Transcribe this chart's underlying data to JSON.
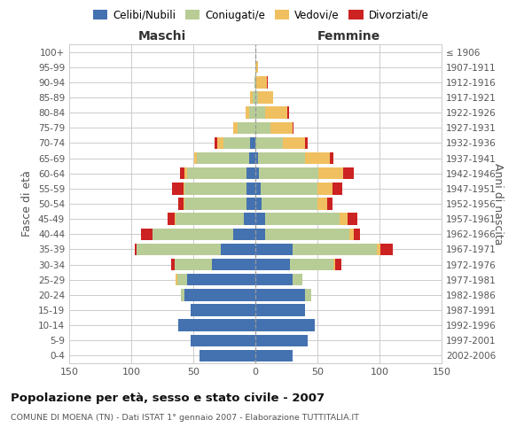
{
  "age_groups": [
    "0-4",
    "5-9",
    "10-14",
    "15-19",
    "20-24",
    "25-29",
    "30-34",
    "35-39",
    "40-44",
    "45-49",
    "50-54",
    "55-59",
    "60-64",
    "65-69",
    "70-74",
    "75-79",
    "80-84",
    "85-89",
    "90-94",
    "95-99",
    "100+"
  ],
  "birth_years": [
    "2002-2006",
    "1997-2001",
    "1992-1996",
    "1987-1991",
    "1982-1986",
    "1977-1981",
    "1972-1976",
    "1967-1971",
    "1962-1966",
    "1957-1961",
    "1952-1956",
    "1947-1951",
    "1942-1946",
    "1937-1941",
    "1932-1936",
    "1927-1931",
    "1922-1926",
    "1917-1921",
    "1912-1916",
    "1907-1911",
    "≤ 1906"
  ],
  "males": {
    "celibi": [
      45,
      52,
      62,
      52,
      57,
      55,
      35,
      28,
      18,
      9,
      7,
      7,
      7,
      5,
      4,
      0,
      0,
      0,
      0,
      0,
      0
    ],
    "coniugati": [
      0,
      0,
      0,
      0,
      3,
      8,
      30,
      68,
      65,
      55,
      50,
      50,
      48,
      42,
      22,
      14,
      5,
      2,
      1,
      0,
      0
    ],
    "vedovi": [
      0,
      0,
      0,
      0,
      0,
      1,
      0,
      0,
      0,
      1,
      1,
      1,
      2,
      2,
      5,
      4,
      3,
      2,
      0,
      0,
      0
    ],
    "divorziati": [
      0,
      0,
      0,
      0,
      0,
      0,
      3,
      1,
      9,
      6,
      4,
      9,
      4,
      0,
      2,
      0,
      0,
      0,
      0,
      0,
      0
    ]
  },
  "females": {
    "nubili": [
      30,
      42,
      48,
      40,
      40,
      30,
      28,
      30,
      8,
      8,
      5,
      4,
      3,
      2,
      0,
      0,
      0,
      0,
      0,
      0,
      0
    ],
    "coniugate": [
      0,
      0,
      0,
      0,
      5,
      8,
      35,
      68,
      68,
      60,
      45,
      46,
      48,
      38,
      22,
      12,
      8,
      2,
      1,
      0,
      0
    ],
    "vedove": [
      0,
      0,
      0,
      0,
      0,
      0,
      1,
      3,
      3,
      6,
      8,
      12,
      20,
      20,
      18,
      18,
      18,
      12,
      8,
      2,
      0
    ],
    "divorziate": [
      0,
      0,
      0,
      0,
      0,
      0,
      5,
      10,
      5,
      8,
      4,
      8,
      8,
      3,
      2,
      1,
      1,
      0,
      1,
      0,
      0
    ]
  },
  "colors": {
    "celibi": "#4472b0",
    "coniugati": "#b8cc96",
    "vedovi": "#f0c060",
    "divorziati": "#cc2222"
  },
  "xlim": 150,
  "title": "Popolazione per età, sesso e stato civile - 2007",
  "subtitle": "COMUNE DI MOENA (TN) - Dati ISTAT 1° gennaio 2007 - Elaborazione TUTTITALIA.IT",
  "xlabel_left": "Maschi",
  "xlabel_right": "Femmine",
  "ylabel_left": "Fasce di età",
  "ylabel_right": "Anni di nascita",
  "legend_labels": [
    "Celibi/Nubili",
    "Coniugati/e",
    "Vedovi/e",
    "Divorziati/e"
  ],
  "background_color": "#ffffff",
  "grid_color": "#cccccc"
}
